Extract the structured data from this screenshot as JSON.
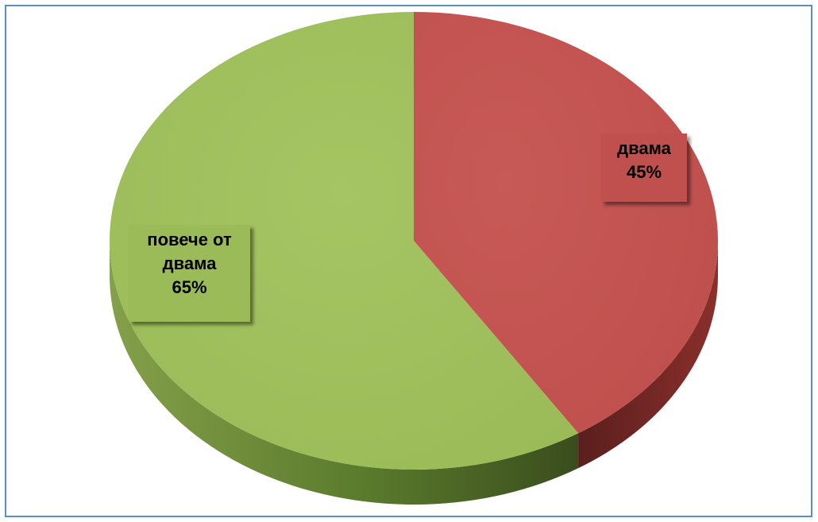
{
  "chart_data": {
    "type": "pie",
    "style": "3d",
    "slices": [
      {
        "label": "двама",
        "value": 45,
        "value_label": "45%",
        "color": "#c0504d",
        "side_color": "#7a2a27"
      },
      {
        "label": "повече от двама",
        "label_lines": [
          "повече от",
          "двама"
        ],
        "value": 65,
        "value_label": "65%",
        "color": "#9bbb59",
        "side_color": "#5e7a2c"
      }
    ],
    "title": "",
    "legend": "none",
    "border_color": "#5b8ec7"
  }
}
